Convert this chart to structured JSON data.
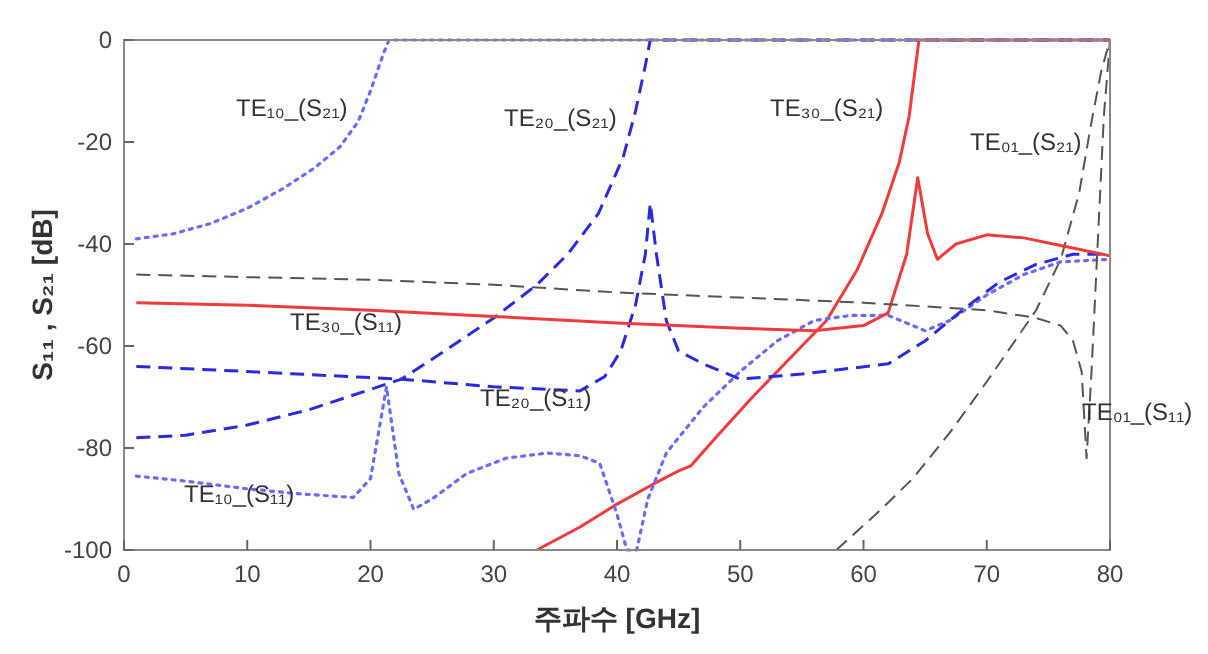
{
  "chart_data": {
    "type": "line",
    "xlabel": "주파수 [GHz]",
    "ylabel": "S₁₁ , S₂₁ [dB]",
    "xlim": [
      0,
      80
    ],
    "xticks": [
      0,
      10,
      20,
      30,
      40,
      50,
      60,
      70,
      80
    ],
    "ylim": [
      -100,
      0
    ],
    "yticks": [
      -100,
      -80,
      -60,
      -40,
      -20,
      0
    ],
    "grid": false,
    "marker": "none",
    "series": [
      {
        "color": "#6b6bff",
        "line_style": "dotted",
        "x": [
          1,
          4,
          7,
          10,
          13,
          15.5,
          17.5,
          19,
          20,
          21,
          21.5,
          80
        ],
        "values": [
          -39,
          -38,
          -36,
          -33,
          -29,
          -25,
          -21,
          -16,
          -10,
          -3,
          0,
          0
        ]
      },
      {
        "color": "#2a2ae0",
        "line_style": "dashed",
        "x": [
          1,
          5,
          10,
          15,
          20,
          22.5,
          26,
          30,
          33.5,
          36,
          38.5,
          40.5,
          41.5,
          42.3,
          42.7,
          80
        ],
        "values": [
          -78,
          -77.5,
          -75.5,
          -72.5,
          -68.5,
          -66.5,
          -61,
          -54.5,
          -48,
          -42,
          -34,
          -23,
          -14,
          -5,
          0,
          0
        ]
      },
      {
        "color": "#ee3b3b",
        "line_style": "solid",
        "x": [
          33.5,
          37,
          40,
          43,
          45,
          46,
          48,
          51,
          54,
          57,
          59.5,
          61.5,
          62.9,
          63.7,
          64.5,
          80
        ],
        "values": [
          -100,
          -95.5,
          -91,
          -87,
          -84.5,
          -83.5,
          -78,
          -70,
          -62.5,
          -55,
          -45,
          -34,
          -24,
          -15,
          0,
          0
        ]
      },
      {
        "color": "#555555",
        "line_style": "dashed",
        "x": [
          57.8,
          61,
          64,
          67,
          70,
          72,
          74,
          76,
          77.5,
          78.5,
          79.3,
          80
        ],
        "values": [
          -100,
          -93,
          -86,
          -77,
          -67,
          -60,
          -53,
          -43,
          -30,
          -16,
          -6,
          0
        ]
      },
      {
        "color": "#6b6bff",
        "line_style": "dotted",
        "x": [
          1,
          5,
          10,
          14.3,
          18.6,
          20,
          21.3,
          22.3,
          23.5,
          25,
          27.8,
          31,
          34.3,
          37,
          38.6,
          40,
          40.8,
          41.6,
          42.5,
          44,
          47,
          50,
          53,
          56,
          59,
          62,
          65,
          67,
          70,
          73,
          76,
          80
        ],
        "values": [
          -85.5,
          -86.5,
          -88,
          -89,
          -89.7,
          -86,
          -68,
          -85,
          -92,
          -90,
          -85,
          -82,
          -81,
          -81.5,
          -83,
          -93,
          -100,
          -100,
          -90,
          -81,
          -72,
          -65,
          -59,
          -55,
          -54,
          -54,
          -57,
          -55,
          -50,
          -46,
          -43.5,
          -43
        ]
      },
      {
        "color": "#2a2ae0",
        "line_style": "dashed",
        "x": [
          1,
          10,
          22.5,
          30,
          37,
          39,
          40.3,
          41.5,
          42.3,
          42.7,
          43.2,
          44,
          45,
          47,
          50,
          55,
          62,
          65,
          68,
          71,
          74,
          77,
          80
        ],
        "values": [
          -64,
          -65,
          -66.5,
          -68,
          -68.8,
          -66,
          -61,
          -52,
          -42,
          -32,
          -42,
          -55,
          -61,
          -63.5,
          -66.5,
          -65.5,
          -63.5,
          -59,
          -53,
          -47.5,
          -44,
          -42,
          -42
        ]
      },
      {
        "color": "#ee3b3b",
        "line_style": "solid",
        "x": [
          1,
          10,
          20,
          30,
          40,
          50,
          56,
          60,
          62,
          63.5,
          64.4,
          65.2,
          66,
          67.5,
          70,
          73,
          76,
          80
        ],
        "values": [
          -51.5,
          -52,
          -53,
          -54.2,
          -55.5,
          -56.5,
          -57,
          -56,
          -53.5,
          -42,
          -27,
          -38,
          -43,
          -40,
          -38.2,
          -38.8,
          -40.3,
          -42.3
        ]
      },
      {
        "color": "#555555",
        "line_style": "dashed",
        "x": [
          1,
          10,
          20,
          30,
          40,
          50,
          60,
          70,
          74,
          76,
          77,
          77.7,
          78.1,
          78.5,
          79,
          79.5,
          80
        ],
        "values": [
          -46,
          -46.5,
          -47,
          -48,
          -49.5,
          -50.5,
          -51.5,
          -53,
          -54.5,
          -56,
          -59,
          -65,
          -82,
          -65,
          -40,
          -15,
          0
        ]
      }
    ],
    "annotations": [
      "TE₁₀_(S₂₁)",
      "TE₂₀_(S₂₁)",
      "TE₃₀_(S₂₁)",
      "TE₀₁_(S₂₁)",
      "TE₃₀_(S₁₁)",
      "TE₂₀_(S₁₁)",
      "TE₁₀_(S₁₁)",
      "TE₀₁_(S₁₁)"
    ]
  }
}
